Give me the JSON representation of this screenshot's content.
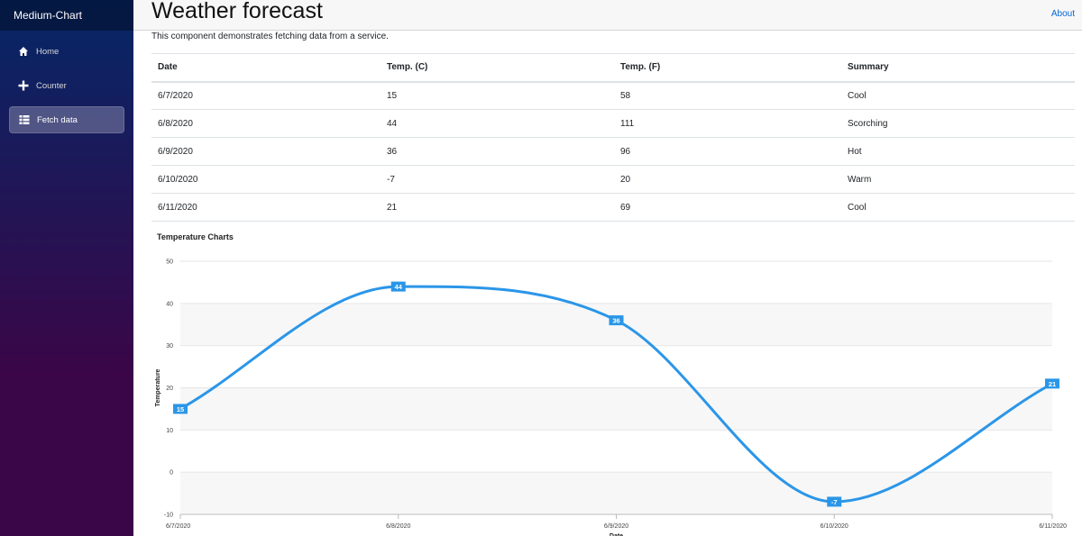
{
  "sidebar": {
    "brand": "Medium-Chart",
    "items": [
      {
        "label": "Home",
        "icon": "home-icon",
        "active": false
      },
      {
        "label": "Counter",
        "icon": "plus-icon",
        "active": false
      },
      {
        "label": "Fetch data",
        "icon": "list-icon",
        "active": true
      }
    ]
  },
  "topbar": {
    "about": "About"
  },
  "main": {
    "title": "Weather forecast",
    "description": "This component demonstrates fetching data from a service.",
    "table": {
      "headers": [
        "Date",
        "Temp. (C)",
        "Temp. (F)",
        "Summary"
      ],
      "rows": [
        [
          "6/7/2020",
          "15",
          "58",
          "Cool"
        ],
        [
          "6/8/2020",
          "44",
          "111",
          "Scorching"
        ],
        [
          "6/9/2020",
          "36",
          "96",
          "Hot"
        ],
        [
          "6/10/2020",
          "-7",
          "20",
          "Warm"
        ],
        [
          "6/11/2020",
          "21",
          "69",
          "Cool"
        ]
      ]
    }
  },
  "chart_data": {
    "type": "line",
    "title": "Temperature Charts",
    "xlabel": "Date",
    "ylabel": "Temperature",
    "categories": [
      "6/7/2020",
      "6/8/2020",
      "6/9/2020",
      "6/10/2020",
      "6/11/2020"
    ],
    "series": [
      {
        "values": [
          15,
          44,
          36,
          -7,
          21
        ],
        "color": "#2b96e8"
      }
    ],
    "ylim": [
      -10,
      50
    ],
    "yticks": [
      -10,
      0,
      10,
      20,
      30,
      40,
      50
    ],
    "grid": true,
    "smooth": true,
    "data_labels": true
  }
}
